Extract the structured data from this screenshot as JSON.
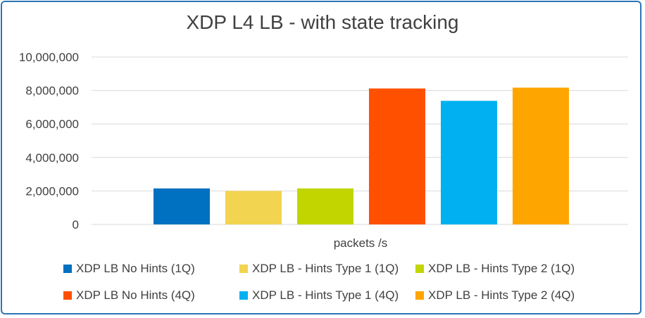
{
  "chart_data": {
    "type": "bar",
    "title": "XDP L4 LB - with state tracking",
    "xlabel": "packets /s",
    "ylabel": "",
    "ylim": [
      0,
      10000000
    ],
    "yticks": [
      "0",
      "2,000,000",
      "4,000,000",
      "6,000,000",
      "8,000,000",
      "10,000,000"
    ],
    "categories": [
      "packets /s"
    ],
    "grid": true,
    "legend_position": "bottom",
    "series": [
      {
        "name": "XDP LB No Hints (1Q)",
        "values": [
          2150000
        ],
        "color": "#0070c0"
      },
      {
        "name": "XDP LB - Hints Type 1 (1Q)",
        "values": [
          2000000
        ],
        "color": "#f2d450"
      },
      {
        "name": "XDP LB - Hints Type 2 (1Q)",
        "values": [
          2150000
        ],
        "color": "#c2d500"
      },
      {
        "name": "XDP LB No Hints (4Q)",
        "values": [
          8120000
        ],
        "color": "#ff5000"
      },
      {
        "name": "XDP LB - Hints Type 1 (4Q)",
        "values": [
          7380000
        ],
        "color": "#00b0f0"
      },
      {
        "name": "XDP LB - Hints Type 2 (4Q)",
        "values": [
          8170000
        ],
        "color": "#ffa500"
      }
    ]
  }
}
